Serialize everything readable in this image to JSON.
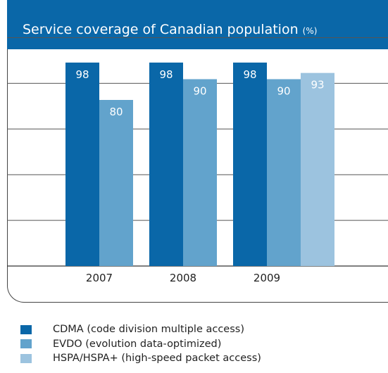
{
  "header": {
    "title": "Service coverage of Canadian population",
    "unit": "(%)"
  },
  "colors": {
    "header_bg": "#0a67a8",
    "cdma": "#0a67a8",
    "evdo": "#62a3cc",
    "hspa": "#9cc3df"
  },
  "chart_data": {
    "type": "bar",
    "title": "Service coverage of Canadian population (%)",
    "categories": [
      "2007",
      "2008",
      "2009"
    ],
    "series": [
      {
        "name": "CDMA (code division multiple access)",
        "values": [
          98,
          98,
          98
        ],
        "color": "#0a67a8"
      },
      {
        "name": "EVDO (evolution data-optimized)",
        "values": [
          80,
          90,
          90
        ],
        "color": "#62a3cc"
      },
      {
        "name": "HSPA/HSPA+ (high-speed packet access)",
        "values": [
          null,
          null,
          93
        ],
        "color": "#9cc3df"
      }
    ],
    "ylim": [
      0,
      110
    ],
    "grid": true,
    "legend_position": "bottom"
  },
  "legend": {
    "items": [
      {
        "label": "CDMA (code division multiple access)",
        "color": "#0a67a8"
      },
      {
        "label": "EVDO (evolution data-optimized)",
        "color": "#62a3cc"
      },
      {
        "label": "HSPA/HSPA+ (high-speed packet access)",
        "color": "#9cc3df"
      }
    ]
  }
}
